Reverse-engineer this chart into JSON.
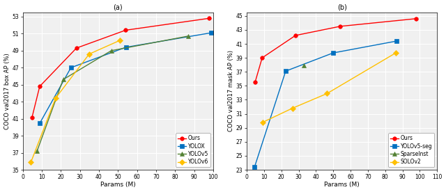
{
  "left": {
    "title": "(a)",
    "xlabel": "Params (M)",
    "ylabel": "COCO val2017 box AP (%)",
    "ylim": [
      35,
      53.5
    ],
    "yticks": [
      35,
      37,
      39,
      41,
      43,
      45,
      47,
      49,
      51,
      53
    ],
    "xlim": [
      0,
      100
    ],
    "xticks": [
      0,
      10,
      20,
      30,
      40,
      50,
      60,
      70,
      80,
      90,
      100
    ],
    "series": [
      {
        "label": "Ours",
        "color": "#ff0000",
        "marker": "o",
        "x": [
          4.8,
          8.9,
          28.2,
          54.0,
          98.0
        ],
        "y": [
          41.1,
          44.8,
          49.3,
          51.4,
          52.8
        ]
      },
      {
        "label": "YOLOX",
        "color": "#0070c0",
        "marker": "s",
        "x": [
          9.0,
          25.3,
          54.2,
          99.1
        ],
        "y": [
          40.5,
          47.0,
          49.4,
          51.1
        ]
      },
      {
        "label": "YOLOv5",
        "color": "#548235",
        "marker": "^",
        "x": [
          7.5,
          21.2,
          46.5,
          86.7
        ],
        "y": [
          37.2,
          45.6,
          49.0,
          50.7
        ]
      },
      {
        "label": "YOLOv6",
        "color": "#ffc000",
        "marker": "D",
        "x": [
          4.3,
          17.2,
          34.9,
          51.0
        ],
        "y": [
          35.9,
          43.4,
          48.6,
          50.2
        ]
      }
    ]
  },
  "right": {
    "title": "(b)",
    "xlabel": "Params (M)",
    "ylabel": "COCO val2017 mask AP (%)",
    "ylim": [
      23,
      45.5
    ],
    "yticks": [
      23,
      25,
      27,
      29,
      31,
      33,
      35,
      37,
      39,
      41,
      43,
      45
    ],
    "xlim": [
      0,
      110
    ],
    "xticks": [
      0,
      10,
      20,
      30,
      40,
      50,
      60,
      70,
      80,
      90,
      100,
      110
    ],
    "series": [
      {
        "label": "Ours",
        "color": "#ff0000",
        "marker": "o",
        "x": [
          4.8,
          8.9,
          28.2,
          54.0,
          98.0
        ],
        "y": [
          35.5,
          39.0,
          42.2,
          43.5,
          44.6
        ]
      },
      {
        "label": "YOLOv5-seg",
        "color": "#0070c0",
        "marker": "s",
        "x": [
          4.5,
          22.5,
          49.9,
          86.7
        ],
        "y": [
          23.4,
          37.1,
          39.7,
          41.4
        ]
      },
      {
        "label": "SparseInst",
        "color": "#548235",
        "marker": "^",
        "x": [
          32.9
        ],
        "y": [
          37.9
        ]
      },
      {
        "label": "SOLOv2",
        "color": "#ffc000",
        "marker": "D",
        "x": [
          9.3,
          26.4,
          46.4,
          86.1
        ],
        "y": [
          29.8,
          31.8,
          33.9,
          39.7
        ]
      }
    ]
  },
  "bg_color": "#ffffff",
  "plot_bg_color": "#f0f0f0",
  "grid_color": "#ffffff",
  "figsize": [
    6.4,
    2.76
  ],
  "dpi": 100
}
